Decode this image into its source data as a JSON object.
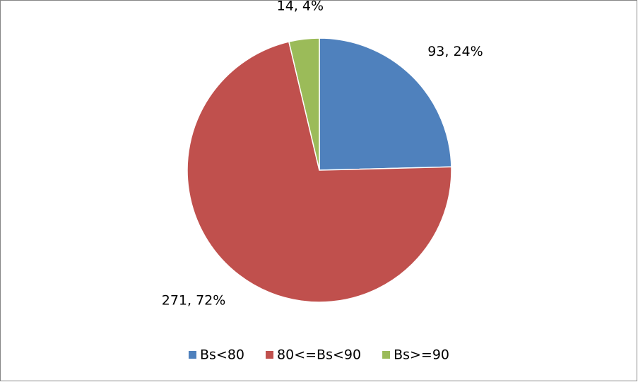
{
  "chart_data": {
    "type": "pie",
    "categories": [
      "Bs<80",
      "80<=Bs<90",
      "Bs>=90"
    ],
    "values": [
      93,
      271,
      14
    ],
    "value_labels": [
      "93, 24%",
      "271, 72%",
      "14, 4%"
    ],
    "colors": [
      "#4f81bd",
      "#c0504d",
      "#9bbb59"
    ],
    "legend": "bottom"
  }
}
